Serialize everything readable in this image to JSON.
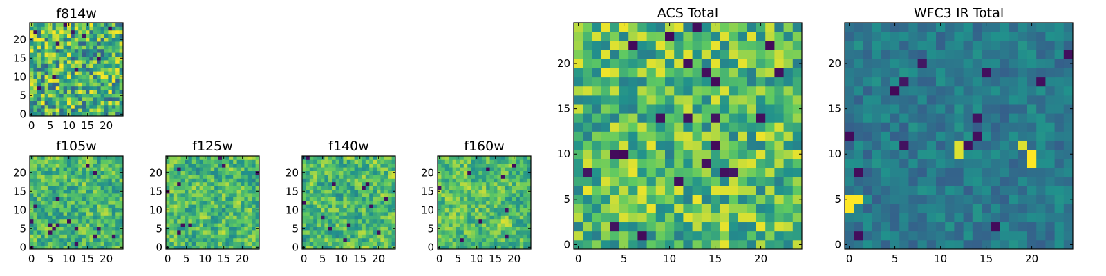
{
  "figure": {
    "colormap": "viridis",
    "colormap_stops": [
      "#440154",
      "#3b528b",
      "#21918c",
      "#5ec962",
      "#fde725"
    ]
  },
  "chart_data": [
    {
      "id": "f814w",
      "type": "heatmap",
      "title": "f814w",
      "grid_size": 25,
      "xlim": [
        0,
        24
      ],
      "ylim": [
        0,
        24
      ],
      "xticks": [
        0,
        5,
        10,
        15,
        20
      ],
      "yticks": [
        0,
        5,
        10,
        15,
        20
      ],
      "value_range": [
        0.3,
        1.0
      ],
      "dark_fraction": 0.02,
      "seed": 11,
      "smooth": 0
    },
    {
      "id": "f105w",
      "type": "heatmap",
      "title": "f105w",
      "grid_size": 25,
      "xlim": [
        0,
        24
      ],
      "ylim": [
        0,
        24
      ],
      "xticks": [
        0,
        5,
        10,
        15,
        20
      ],
      "yticks": [
        0,
        5,
        10,
        15,
        20
      ],
      "value_range": [
        0.35,
        1.0
      ],
      "dark_fraction": 0.02,
      "seed": 23,
      "smooth": 1
    },
    {
      "id": "f125w",
      "type": "heatmap",
      "title": "f125w",
      "grid_size": 25,
      "xlim": [
        0,
        24
      ],
      "ylim": [
        0,
        24
      ],
      "xticks": [
        0,
        5,
        10,
        15,
        20
      ],
      "yticks": [
        0,
        5,
        10,
        15,
        20
      ],
      "value_range": [
        0.35,
        1.0
      ],
      "dark_fraction": 0.015,
      "seed": 37,
      "smooth": 1
    },
    {
      "id": "f140w",
      "type": "heatmap",
      "title": "f140w",
      "grid_size": 25,
      "xlim": [
        0,
        24
      ],
      "ylim": [
        0,
        24
      ],
      "xticks": [
        0,
        5,
        10,
        15,
        20
      ],
      "yticks": [
        0,
        5,
        10,
        15,
        20
      ],
      "value_range": [
        0.35,
        1.0
      ],
      "dark_fraction": 0.015,
      "seed": 41,
      "smooth": 1
    },
    {
      "id": "f160w",
      "type": "heatmap",
      "title": "f160w",
      "grid_size": 25,
      "xlim": [
        0,
        24
      ],
      "ylim": [
        0,
        24
      ],
      "xticks": [
        0,
        5,
        10,
        15,
        20
      ],
      "yticks": [
        0,
        5,
        10,
        15,
        20
      ],
      "value_range": [
        0.4,
        1.0
      ],
      "dark_fraction": 0.015,
      "seed": 53,
      "smooth": 1
    },
    {
      "id": "acs-total",
      "type": "heatmap",
      "title": "ACS Total",
      "grid_size": 25,
      "xlim": [
        0,
        24
      ],
      "ylim": [
        0,
        24
      ],
      "xticks": [
        0,
        5,
        10,
        15,
        20
      ],
      "yticks": [
        0,
        5,
        10,
        15,
        20
      ],
      "value_range": [
        0.42,
        0.98
      ],
      "dark_fraction": 0.025,
      "seed": 67,
      "smooth": 0
    },
    {
      "id": "wfc3-ir-total",
      "type": "heatmap",
      "title": "WFC3 IR Total",
      "grid_size": 25,
      "xlim": [
        0,
        24
      ],
      "ylim": [
        0,
        24
      ],
      "xticks": [
        0,
        5,
        10,
        15,
        20
      ],
      "yticks": [
        0,
        5,
        10,
        15,
        20
      ],
      "value_range": [
        0.3,
        0.52
      ],
      "dark_fraction": 0.03,
      "seed": 79,
      "smooth": 0,
      "hotspots": [
        {
          "x": 0,
          "y": 4,
          "value": 1.0
        },
        {
          "x": 0,
          "y": 5,
          "value": 1.0
        },
        {
          "x": 1,
          "y": 5,
          "value": 1.0
        },
        {
          "x": 12,
          "y": 11,
          "value": 0.95
        },
        {
          "x": 12,
          "y": 10,
          "value": 0.95
        },
        {
          "x": 19,
          "y": 11,
          "value": 0.95
        },
        {
          "x": 20,
          "y": 10,
          "value": 1.0
        },
        {
          "x": 20,
          "y": 9,
          "value": 1.0
        }
      ]
    }
  ]
}
